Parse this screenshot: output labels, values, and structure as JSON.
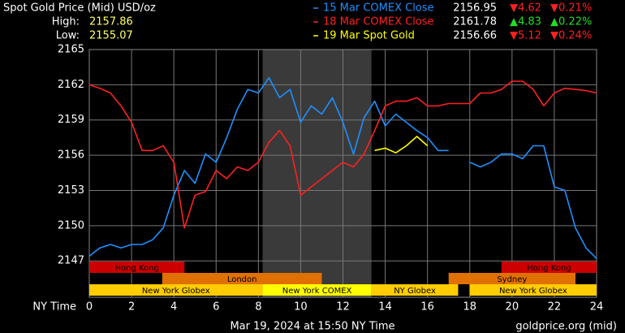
{
  "chart_data": {
    "type": "line",
    "title": "Spot Gold Price (Mid) USD/oz",
    "high_label": "High:",
    "high": "2157.86",
    "low_label": "Low:",
    "low": "2155.07",
    "x_label": "NY Time",
    "footer": "Mar 19, 2024 at 15:50 NY Time",
    "source": "goldprice.org (mid)",
    "xlim": [
      0,
      24
    ],
    "xticks": [
      0,
      2,
      4,
      6,
      8,
      10,
      12,
      14,
      16,
      18,
      20,
      22,
      24
    ],
    "ylim": [
      2143.9,
      2165
    ],
    "yticks": [
      2147,
      2150,
      2153,
      2156,
      2159,
      2162,
      2165
    ],
    "grid": true,
    "shaded_span": [
      8.2,
      13.35
    ],
    "x": [
      0,
      0.5,
      1,
      1.5,
      2,
      2.5,
      3,
      3.5,
      4,
      4.5,
      5,
      5.5,
      6,
      6.5,
      7,
      7.5,
      8,
      8.5,
      9,
      9.5,
      10,
      10.5,
      11,
      11.5,
      12,
      12.5,
      13,
      13.5,
      14,
      14.5,
      15,
      15.5,
      16,
      16.5,
      17,
      17.5,
      18,
      18.5,
      19,
      19.5,
      20,
      20.5,
      21,
      21.5,
      22,
      22.5,
      23,
      23.5,
      24
    ],
    "series": [
      {
        "name": "15 Mar COMEX Close",
        "color": "#1e90ff",
        "last": "2156.95",
        "change": "▼4.62",
        "pct": "▼0.21%",
        "up": false,
        "values": [
          2147.4,
          2148.1,
          2148.4,
          2148.1,
          2148.4,
          2148.4,
          2148.8,
          2149.8,
          2152.6,
          2154.7,
          2153.6,
          2156.1,
          2155.4,
          2157.5,
          2159.9,
          2161.6,
          2161.3,
          2162.6,
          2160.9,
          2161.6,
          2158.8,
          2160.2,
          2159.5,
          2160.9,
          2158.8,
          2156.1,
          2159.2,
          2160.6,
          2158.5,
          2159.5,
          2158.8,
          2158.1,
          2157.5,
          2156.4,
          2156.4,
          null,
          2155.4,
          2155.0,
          2155.4,
          2156.1,
          2156.1,
          2155.7,
          2156.8,
          2156.8,
          2153.3,
          2153.0,
          2149.8,
          2148.1,
          2147.2
        ]
      },
      {
        "name": "18 Mar COMEX Close",
        "color": "#ff2020",
        "last": "2161.78",
        "change": "▲4.83",
        "pct": "▲0.22%",
        "up": true,
        "values": [
          2162.0,
          2161.7,
          2161.3,
          2160.2,
          2158.8,
          2156.4,
          2156.4,
          2156.8,
          2155.4,
          2149.8,
          2152.6,
          2152.9,
          2154.7,
          2154.0,
          2155.0,
          2154.7,
          2155.4,
          2157.1,
          2158.1,
          2156.8,
          2152.6,
          2153.3,
          2154.0,
          2154.7,
          2155.4,
          2155.0,
          2156.1,
          2158.1,
          2160.2,
          2160.6,
          2160.6,
          2160.9,
          2160.2,
          2160.2,
          2160.4,
          2160.4,
          2160.4,
          2161.3,
          2161.3,
          2161.6,
          2162.3,
          2162.3,
          2161.6,
          2160.2,
          2161.3,
          2161.7,
          2161.6,
          2161.5,
          2161.3
        ]
      },
      {
        "name": "19 Mar Spot Gold",
        "color": "#ffff00",
        "last": "2156.66",
        "change": "▼5.12",
        "pct": "▼0.24%",
        "up": false,
        "values": [
          null,
          null,
          null,
          null,
          null,
          null,
          null,
          null,
          null,
          null,
          null,
          null,
          null,
          null,
          null,
          null,
          null,
          null,
          null,
          null,
          null,
          null,
          null,
          null,
          null,
          null,
          null,
          2156.4,
          2156.6,
          2156.2,
          2156.8,
          2157.6,
          2156.8,
          null,
          null,
          null,
          null,
          null,
          null,
          null,
          null,
          null,
          null,
          null,
          null,
          null,
          null,
          null,
          null
        ]
      }
    ],
    "session_rows": [
      [
        {
          "label": "Hong Kong",
          "start": 0,
          "end": 4.5,
          "color": "#cc0000"
        },
        {
          "label": "Hong Kong",
          "start": 19.5,
          "end": 24,
          "color": "#cc0000"
        }
      ],
      [
        {
          "label": "London",
          "start": 3.45,
          "end": 11,
          "color": "#e07000"
        },
        {
          "label": "Sydney",
          "start": 17,
          "end": 23,
          "color": "#e07000"
        }
      ],
      [
        {
          "label": "New York Globex",
          "start": 0,
          "end": 8.2,
          "color": "#ffcc00"
        },
        {
          "label": "New York COMEX",
          "start": 8.2,
          "end": 13.35,
          "color": "#ffff00"
        },
        {
          "label": "NY Globex",
          "start": 13.35,
          "end": 17.45,
          "color": "#ffcc00"
        },
        {
          "label": "New York Globex",
          "start": 18,
          "end": 24,
          "color": "#ffcc00"
        }
      ]
    ]
  }
}
